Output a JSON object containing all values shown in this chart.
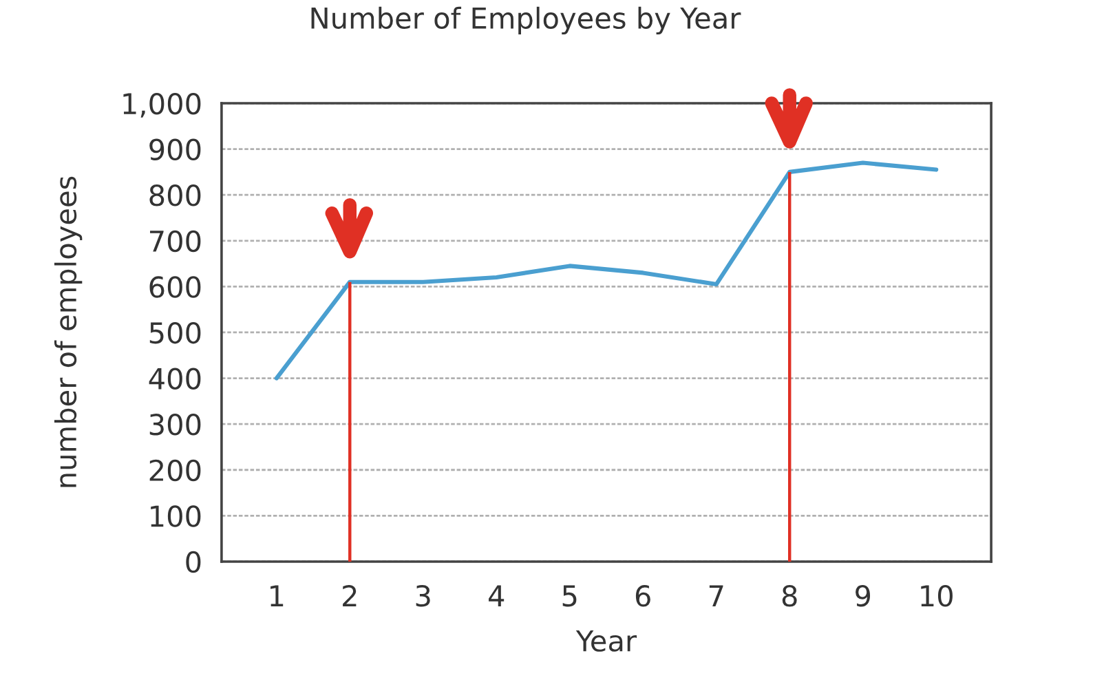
{
  "chart_data": {
    "type": "line",
    "title": "Number of Employees by Year",
    "xlabel": "Year",
    "ylabel": "number of employees",
    "x": [
      1,
      2,
      3,
      4,
      5,
      6,
      7,
      8,
      9,
      10
    ],
    "series": [
      {
        "color": "#4a9fd0",
        "values": [
          400,
          610,
          610,
          620,
          645,
          630,
          605,
          850,
          870,
          855
        ]
      }
    ],
    "xlim": [
      0.25,
      10.75
    ],
    "xticks": [
      1,
      2,
      3,
      4,
      5,
      6,
      7,
      8,
      9,
      10
    ],
    "ylim": [
      0,
      1000
    ],
    "yticks": [
      0,
      100,
      200,
      300,
      400,
      500,
      600,
      700,
      800,
      900,
      {
        "value": 1000,
        "label": "1,000"
      }
    ],
    "grid": "y",
    "line_style": "solid",
    "ref_lines": [
      {
        "axis": "x",
        "value": 2,
        "color": "#e03024"
      },
      {
        "axis": "x",
        "value": 8,
        "color": "#e03024"
      }
    ]
  }
}
